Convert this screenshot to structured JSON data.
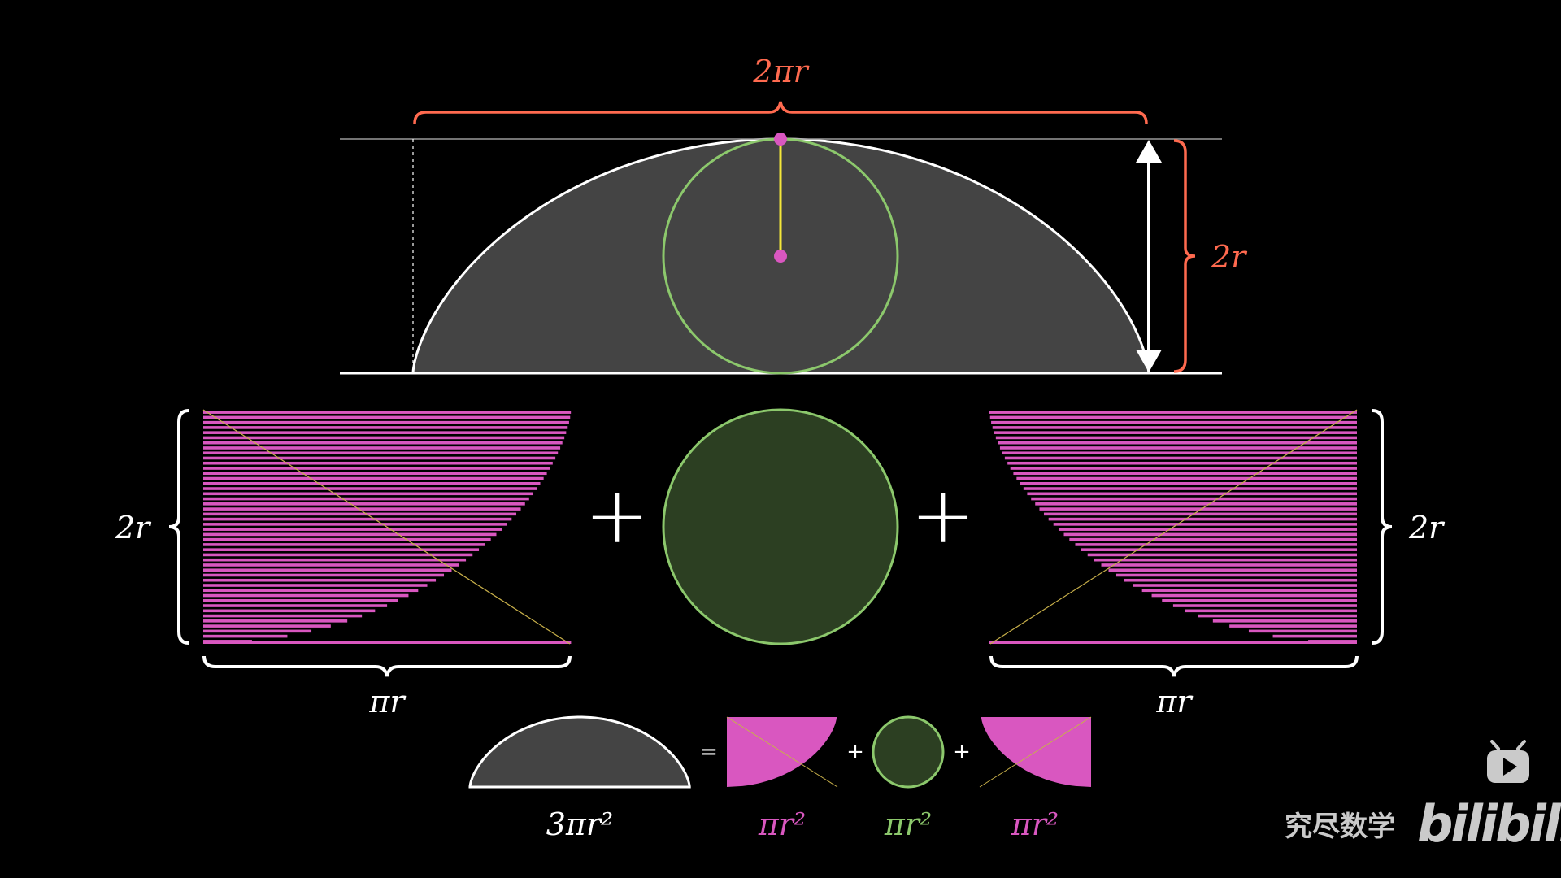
{
  "colors": {
    "background": "#000000",
    "orange": "#ff6a4f",
    "pink": "#d957c0",
    "green": "#8cc86c",
    "green_fill": "#2c3f22",
    "cycloid_fill": "#444444",
    "white": "#ffffff",
    "yellow": "#f5e83a"
  },
  "labels": {
    "top_width": "2πr",
    "top_height": "2r",
    "left_height": "2r",
    "left_width": "πr",
    "right_height": "2r",
    "right_width": "πr",
    "plus": "+",
    "equals": "=",
    "total_area": "3πr²",
    "left_area": "πr²",
    "circle_area": "πr²",
    "right_area": "πr²"
  },
  "watermark": {
    "channel": "究尽数学",
    "brand": "bilibili",
    "icon": "tv-play-icon"
  }
}
